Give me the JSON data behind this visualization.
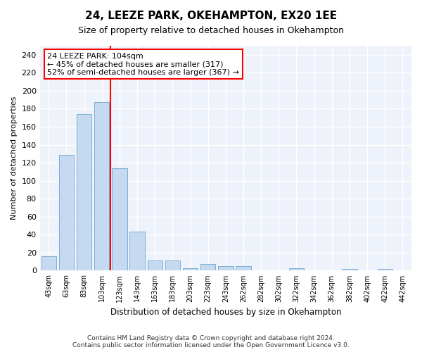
{
  "title": "24, LEEZE PARK, OKEHAMPTON, EX20 1EE",
  "subtitle": "Size of property relative to detached houses in Okehampton",
  "xlabel": "Distribution of detached houses by size in Okehampton",
  "ylabel": "Number of detached properties",
  "bar_color": "#c5d9f0",
  "bar_edge_color": "#7bafd4",
  "background_color": "#eef2fa",
  "grid_color": "#ffffff",
  "categories": [
    "43sqm",
    "63sqm",
    "83sqm",
    "103sqm",
    "123sqm",
    "143sqm",
    "163sqm",
    "183sqm",
    "203sqm",
    "223sqm",
    "243sqm",
    "262sqm",
    "282sqm",
    "302sqm",
    "322sqm",
    "342sqm",
    "362sqm",
    "382sqm",
    "402sqm",
    "422sqm",
    "442sqm"
  ],
  "values": [
    16,
    129,
    174,
    187,
    114,
    43,
    11,
    11,
    3,
    7,
    5,
    5,
    0,
    0,
    3,
    0,
    0,
    2,
    0,
    2,
    0
  ],
  "ylim": [
    0,
    250
  ],
  "yticks": [
    0,
    20,
    40,
    60,
    80,
    100,
    120,
    140,
    160,
    180,
    200,
    220,
    240
  ],
  "property_label": "24 LEEZE PARK: 104sqm",
  "annotation_line1": "← 45% of detached houses are smaller (317)",
  "annotation_line2": "52% of semi-detached houses are larger (367) →",
  "red_line_x": 3.5,
  "footer_line1": "Contains HM Land Registry data © Crown copyright and database right 2024.",
  "footer_line2": "Contains public sector information licensed under the Open Government Licence v3.0."
}
